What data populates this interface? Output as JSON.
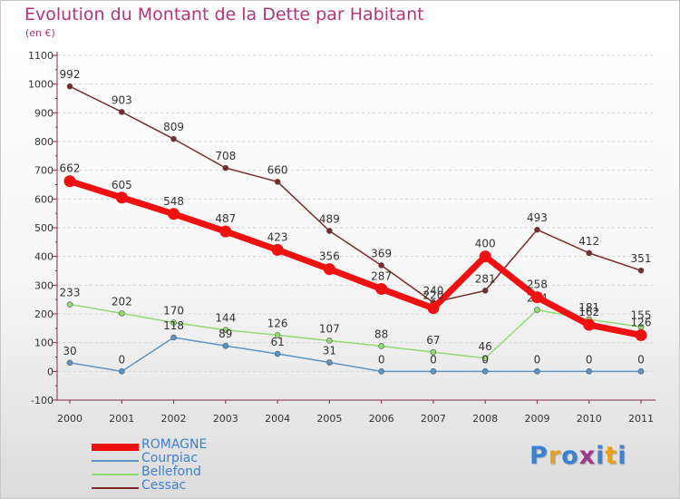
{
  "chart_data": {
    "type": "line",
    "title": "Evolution du Montant de la Dette par Habitant",
    "subtitle": "(en €)",
    "x": [
      "2000",
      "2001",
      "2002",
      "2003",
      "2004",
      "2005",
      "2006",
      "2007",
      "2008",
      "2009",
      "2010",
      "2011"
    ],
    "ylim": [
      -100,
      1100
    ],
    "yticks": [
      -100,
      0,
      100,
      200,
      300,
      400,
      500,
      600,
      700,
      800,
      900,
      1000,
      1100
    ],
    "series": [
      {
        "name": "ROMAGNE",
        "color": "#f01010",
        "values": [
          662,
          605,
          548,
          487,
          423,
          356,
          287,
          220,
          400,
          258,
          162,
          126
        ]
      },
      {
        "name": "Courpiac",
        "color": "#5b95c6",
        "values": [
          30,
          0,
          118,
          89,
          61,
          31,
          0,
          0,
          0,
          0,
          0,
          0
        ]
      },
      {
        "name": "Bellefond",
        "color": "#90dc70",
        "values": [
          233,
          202,
          170,
          144,
          126,
          107,
          88,
          67,
          46,
          214,
          181,
          155
        ]
      },
      {
        "name": "Cessac",
        "color": "#7a2a2a",
        "values": [
          992,
          903,
          809,
          708,
          660,
          489,
          369,
          240,
          281,
          493,
          412,
          351
        ]
      }
    ]
  },
  "logo": {
    "letters": [
      "P",
      "r",
      "o",
      "x",
      "i",
      "t",
      "i"
    ],
    "colors": [
      "#3b82d0",
      "#e8a020",
      "#3b82d0",
      "#9c3a8e",
      "#3b82d0",
      "#e8a020",
      "#3b82d0"
    ]
  }
}
